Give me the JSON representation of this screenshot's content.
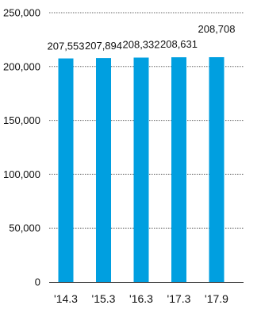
{
  "chart_data": {
    "type": "bar",
    "categories": [
      "'14.3",
      "'15.3",
      "'16.3",
      "'17.3",
      "'17.9"
    ],
    "values": [
      207553,
      207894,
      208332,
      208631,
      208708
    ],
    "value_labels": [
      "207,553",
      "207,894",
      "208,332",
      "208,631",
      "208,708"
    ],
    "ylim": [
      0,
      250000
    ],
    "yticks": [
      0,
      50000,
      100000,
      150000,
      200000,
      250000
    ],
    "ytick_labels": [
      "0",
      "50,000",
      "100,000",
      "150,000",
      "200,000",
      "250,000"
    ],
    "grid": true,
    "bar_color": "#009fe0",
    "title": "",
    "xlabel": "",
    "ylabel": ""
  }
}
